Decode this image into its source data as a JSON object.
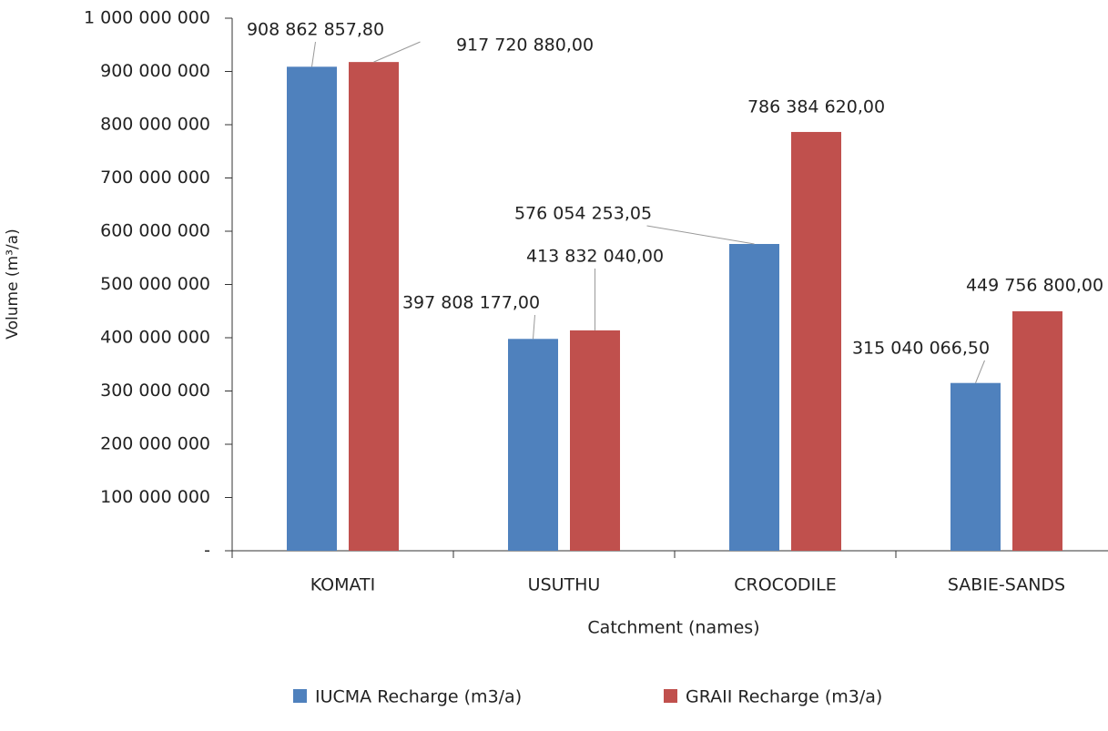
{
  "chart_data": {
    "type": "bar",
    "categories": [
      "KOMATI",
      "USUTHU",
      "CROCODILE",
      "SABIE-SANDS"
    ],
    "series": [
      {
        "name": "IUCMA Recharge (m3/a)",
        "color": "#4f81bd",
        "values": [
          908862857.8,
          397808177.0,
          576054253.05,
          315040066.5
        ],
        "value_labels": [
          "908 862 857,80",
          "397 808 177,00",
          "576 054 253,05",
          "315 040 066,50"
        ]
      },
      {
        "name": "GRAII Recharge (m3/a)",
        "color": "#c0504d",
        "values": [
          917720880.0,
          413832040.0,
          786384620.0,
          449756800.0
        ],
        "value_labels": [
          "917 720 880,00",
          "413 832 040,00",
          "786 384 620,00",
          "449 756 800,00"
        ]
      }
    ],
    "xlabel": "Catchment (names)",
    "ylabel": "Volume (m³/a)",
    "ylim": [
      0,
      1000000000
    ],
    "yticks": [
      {
        "value": 0,
        "label": "-"
      },
      {
        "value": 100000000,
        "label": "100 000 000"
      },
      {
        "value": 200000000,
        "label": "200 000 000"
      },
      {
        "value": 300000000,
        "label": "300 000 000"
      },
      {
        "value": 400000000,
        "label": "400 000 000"
      },
      {
        "value": 500000000,
        "label": "500 000 000"
      },
      {
        "value": 600000000,
        "label": "600 000 000"
      },
      {
        "value": 700000000,
        "label": "700 000 000"
      },
      {
        "value": 800000000,
        "label": "800 000 000"
      },
      {
        "value": 900000000,
        "label": "900 000 000"
      },
      {
        "value": 1000000000,
        "label": "1 000 000 000"
      }
    ],
    "grid": false,
    "legend": "bottom"
  }
}
